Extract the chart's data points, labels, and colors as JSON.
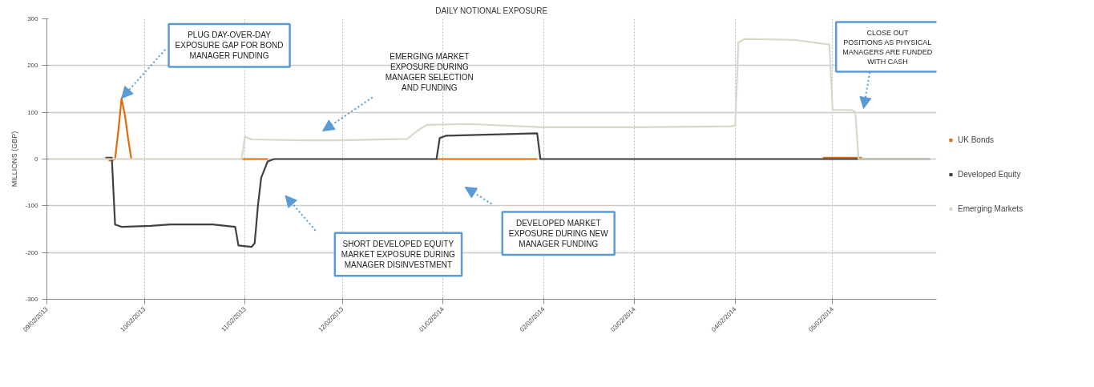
{
  "chart_data": {
    "type": "line",
    "title": "DAILY NOTIONAL EXPOSURE",
    "ylabel": "MILLIONS (GBP)",
    "xlim": [
      "2013-09-02",
      "2014-06-03"
    ],
    "xticks": [
      {
        "value": "2013-09-02",
        "label": "09/02/2013"
      },
      {
        "value": "2013-10-02",
        "label": "10/02/2013"
      },
      {
        "value": "2013-11-02",
        "label": "11/02/2013"
      },
      {
        "value": "2013-12-02",
        "label": "12/02/2013"
      },
      {
        "value": "2014-01-02",
        "label": "01/02/2014"
      },
      {
        "value": "2014-02-02",
        "label": "02/02/2014"
      },
      {
        "value": "2014-03-02",
        "label": "03/02/2014"
      },
      {
        "value": "2014-04-02",
        "label": "04/02/2014"
      },
      {
        "value": "2014-05-02",
        "label": "05/02/2014"
      }
    ],
    "ylim": [
      -300,
      300
    ],
    "yticks": [
      -300,
      -200,
      -100,
      0,
      100,
      200,
      300
    ],
    "grid": true,
    "legend": "right",
    "marker": "none",
    "line_style": "solid",
    "series": [
      {
        "name": "UK Bonds",
        "color": "#e36c0a",
        "x": [
          "2013-09-21",
          "2013-09-22",
          "2013-09-23",
          "2013-09-24",
          "2013-09-25",
          "2013-09-26",
          "2013-09-27",
          "2013-09-28",
          "2013-10-01",
          "2013-11-01",
          "2013-11-09",
          "2013-11-10",
          "2013-12-31",
          "2014-01-31",
          "2014-02-01",
          "2014-04-29",
          "2014-05-11"
        ],
        "values": [
          -3,
          -3,
          0,
          60,
          130,
          95,
          45,
          0,
          null,
          0,
          0,
          null,
          0,
          0,
          null,
          3,
          3
        ]
      },
      {
        "name": "Developed Equity",
        "color": "#404040",
        "x": [
          "2013-09-20",
          "2013-09-22",
          "2013-09-23",
          "2013-09-25",
          "2013-10-04",
          "2013-10-10",
          "2013-10-23",
          "2013-10-30",
          "2013-10-31",
          "2013-11-04",
          "2013-11-05",
          "2013-11-06",
          "2013-11-07",
          "2013-11-09",
          "2013-11-11",
          "2013-12-31",
          "2014-01-01",
          "2014-01-03",
          "2014-01-15",
          "2014-01-31",
          "2014-02-01",
          "2014-06-01"
        ],
        "values": [
          3,
          3,
          -140,
          -145,
          -143,
          -140,
          -140,
          -145,
          -185,
          -188,
          -180,
          -100,
          -40,
          -5,
          0,
          0,
          45,
          50,
          52,
          55,
          0,
          0
        ]
      },
      {
        "name": "Emerging Markets",
        "color": "#d8d8c8",
        "x": [
          "2013-09-02",
          "2013-11-01",
          "2013-11-02",
          "2013-11-04",
          "2013-11-20",
          "2013-12-01",
          "2013-12-22",
          "2013-12-25",
          "2013-12-28",
          "2014-01-10",
          "2014-02-02",
          "2014-03-02",
          "2014-04-01",
          "2014-04-02",
          "2014-04-03",
          "2014-04-05",
          "2014-04-20",
          "2014-05-01",
          "2014-05-02",
          "2014-05-08",
          "2014-05-09",
          "2014-05-10",
          "2014-06-01"
        ],
        "values": [
          0,
          0,
          48,
          42,
          40,
          40,
          43,
          60,
          73,
          75,
          68,
          68,
          70,
          72,
          250,
          257,
          255,
          245,
          105,
          105,
          100,
          0,
          0
        ]
      }
    ],
    "annotations": [
      {
        "text": "PLUG DAY-OVER-DAY\nEXPOSURE GAP FOR BOND\nMANAGER FUNDING",
        "x": "2013-09-25",
        "y": 130
      },
      "EMERGING MARKET\nEXPOSURE DURING\nMANAGER SELECTION\nAND FUNDING",
      "SHORT DEVELOPED EQUITY\nMARKET EXPOSURE DURING\nMANAGER DISINVESTMENT",
      "DEVELOPED MARKET\nEXPOSURE DURING NEW\nMANAGER FUNDING",
      "CLOSE OUT\nPOSITIONS AS PHYSICAL\nMANAGERS ARE FUNDED\nWITH CASH"
    ]
  }
}
